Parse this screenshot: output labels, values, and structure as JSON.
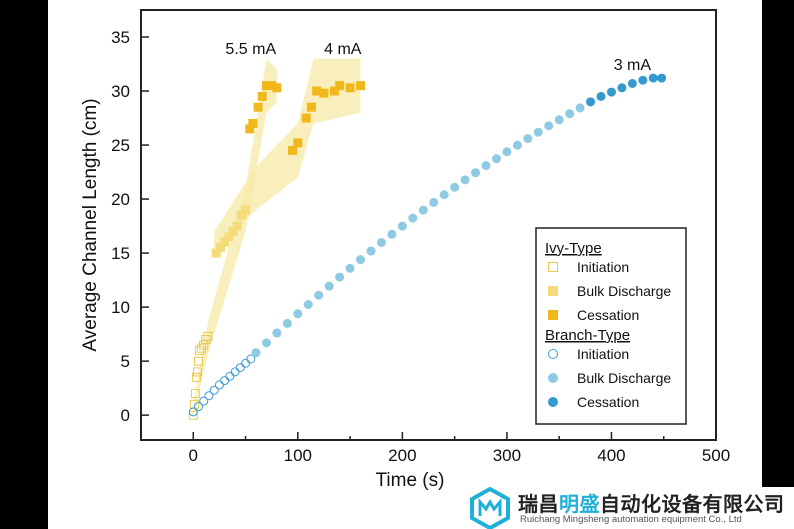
{
  "chart_data": {
    "type": "scatter",
    "title": "",
    "xlabel": "Time (s)",
    "ylabel": "Average Channel Length (cm)",
    "xlim": [
      -50,
      500
    ],
    "ylim": [
      -2.3,
      37.5
    ],
    "xticks": [
      0,
      100,
      200,
      300,
      400,
      500
    ],
    "yticks": [
      0,
      5,
      10,
      15,
      20,
      25,
      30,
      35
    ],
    "grid": false,
    "legend_position": "bottom-right",
    "annotations": [
      {
        "text": "5.5 mA",
        "x": 55,
        "y": 34
      },
      {
        "text": "4 mA",
        "x": 143,
        "y": 34
      },
      {
        "text": "3 mA",
        "x": 420,
        "y": 32.5
      }
    ],
    "legend": {
      "groups": [
        {
          "title": "Ivy-Type",
          "items": [
            "Initiation",
            "Bulk Discharge",
            "Cessation"
          ]
        },
        {
          "title": "Branch-Type",
          "items": [
            "Initiation",
            "Bulk Discharge",
            "Cessation"
          ]
        }
      ]
    },
    "colors": {
      "ivy_initiation": "#e8c84a",
      "ivy_bulk": "#f5dc7a",
      "ivy_cessation": "#f0b81c",
      "ivy_band": "#f7e9a6",
      "branch_initiation": "#3a9bd0",
      "branch_bulk": "#8ecbe3",
      "branch_cessation": "#3598cf"
    },
    "bands": [
      {
        "current": "5.5 mA",
        "points": [
          [
            0,
            0,
            1
          ],
          [
            15,
            6,
            9
          ],
          [
            50,
            17,
            21
          ],
          [
            70,
            28,
            33
          ],
          [
            80,
            29,
            32
          ]
        ]
      },
      {
        "current": "4 mA",
        "points": [
          [
            20,
            15,
            17
          ],
          [
            60,
            19,
            23
          ],
          [
            100,
            22,
            27
          ],
          [
            115,
            27,
            33
          ],
          [
            160,
            28,
            33
          ]
        ]
      }
    ],
    "series": [
      {
        "type": "Ivy",
        "current": "5.5 mA",
        "phase": "Initiation",
        "points": [
          [
            0,
            0
          ],
          [
            1,
            1
          ],
          [
            2,
            2
          ],
          [
            3,
            3.5
          ],
          [
            4,
            4
          ],
          [
            5,
            5
          ],
          [
            6,
            6
          ],
          [
            8,
            6.2
          ],
          [
            10,
            6.5
          ],
          [
            12,
            7
          ],
          [
            14,
            7.3
          ]
        ]
      },
      {
        "type": "Ivy",
        "current": "5.5 mA",
        "phase": "Bulk Discharge",
        "points": [
          [
            22,
            15
          ],
          [
            26,
            15.5
          ],
          [
            30,
            16
          ],
          [
            34,
            16.5
          ],
          [
            38,
            17
          ],
          [
            42,
            17.5
          ],
          [
            46,
            18.5
          ],
          [
            50,
            19
          ]
        ]
      },
      {
        "type": "Ivy",
        "current": "5.5 mA",
        "phase": "Cessation",
        "points": [
          [
            54,
            26.5
          ],
          [
            57,
            27
          ],
          [
            62,
            28.5
          ],
          [
            66,
            29.5
          ],
          [
            70,
            30.5
          ],
          [
            75,
            30.5
          ],
          [
            80,
            30.3
          ]
        ]
      },
      {
        "type": "Ivy",
        "current": "4 mA",
        "phase": "Cessation",
        "points": [
          [
            95,
            24.5
          ],
          [
            100,
            25.2
          ],
          [
            108,
            27.5
          ],
          [
            113,
            28.5
          ],
          [
            118,
            30
          ],
          [
            125,
            29.8
          ],
          [
            135,
            30
          ],
          [
            140,
            30.5
          ],
          [
            150,
            30.3
          ],
          [
            160,
            30.5
          ]
        ]
      },
      {
        "type": "Branch",
        "current": "3 mA",
        "phase": "Initiation",
        "points": [
          [
            0,
            0.3
          ],
          [
            5,
            0.8
          ],
          [
            10,
            1.3
          ],
          [
            15,
            1.8
          ],
          [
            20,
            2.3
          ],
          [
            25,
            2.8
          ],
          [
            30,
            3.2
          ],
          [
            35,
            3.6
          ],
          [
            40,
            4.0
          ],
          [
            45,
            4.4
          ],
          [
            50,
            4.8
          ],
          [
            55,
            5.2
          ]
        ]
      },
      {
        "type": "Branch",
        "current": "3 mA",
        "phase": "Bulk Discharge",
        "points": [
          [
            60,
            5.78
          ],
          [
            70,
            6.69
          ],
          [
            80,
            7.6
          ],
          [
            90,
            8.49
          ],
          [
            100,
            9.38
          ],
          [
            110,
            10.24
          ],
          [
            120,
            11.1
          ],
          [
            130,
            11.94
          ],
          [
            140,
            12.78
          ],
          [
            150,
            13.59
          ],
          [
            160,
            14.4
          ],
          [
            170,
            15.19
          ],
          [
            180,
            15.98
          ],
          [
            190,
            16.74
          ],
          [
            200,
            17.5
          ],
          [
            210,
            18.24
          ],
          [
            220,
            18.98
          ],
          [
            230,
            19.69
          ],
          [
            240,
            20.4
          ],
          [
            250,
            21.09
          ],
          [
            260,
            21.78
          ],
          [
            270,
            22.44
          ],
          [
            280,
            23.1
          ],
          [
            290,
            23.74
          ],
          [
            300,
            24.38
          ],
          [
            310,
            24.99
          ],
          [
            320,
            25.6
          ],
          [
            330,
            26.19
          ],
          [
            340,
            26.78
          ],
          [
            350,
            27.34
          ],
          [
            360,
            27.9
          ],
          [
            370,
            28.44
          ]
        ]
      },
      {
        "type": "Branch",
        "current": "3 mA",
        "phase": "Cessation",
        "points": [
          [
            380,
            29.0
          ],
          [
            390,
            29.5
          ],
          [
            400,
            29.9
          ],
          [
            410,
            30.3
          ],
          [
            420,
            30.7
          ],
          [
            430,
            31.0
          ],
          [
            440,
            31.2
          ],
          [
            448,
            31.2
          ]
        ]
      }
    ]
  },
  "watermark": {
    "company_cn_a": "瑞昌",
    "company_cn_b": "明盛",
    "company_cn_c": "自动化设备有限公司",
    "company_en": "Ruichang Mingsheng automation equipment Co., Ltd"
  }
}
